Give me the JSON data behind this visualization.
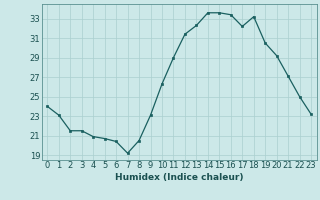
{
  "x": [
    0,
    1,
    2,
    3,
    4,
    5,
    6,
    7,
    8,
    9,
    10,
    11,
    12,
    13,
    14,
    15,
    16,
    17,
    18,
    19,
    20,
    21,
    22,
    23
  ],
  "y": [
    24.0,
    23.1,
    21.5,
    21.5,
    20.9,
    20.7,
    20.4,
    19.2,
    20.5,
    23.1,
    26.3,
    29.0,
    31.4,
    32.3,
    33.6,
    33.6,
    33.4,
    32.2,
    33.2,
    30.5,
    29.2,
    27.1,
    25.0,
    23.2
  ],
  "bg_color": "#cce8e8",
  "grid_color": "#aacfcf",
  "line_color": "#1a6060",
  "marker_color": "#1a6060",
  "xlabel": "Humidex (Indice chaleur)",
  "ylim": [
    18.5,
    34.5
  ],
  "xlim": [
    -0.5,
    23.5
  ],
  "yticks": [
    19,
    21,
    23,
    25,
    27,
    29,
    31,
    33
  ],
  "xticks": [
    0,
    1,
    2,
    3,
    4,
    5,
    6,
    7,
    8,
    9,
    10,
    11,
    12,
    13,
    14,
    15,
    16,
    17,
    18,
    19,
    20,
    21,
    22,
    23
  ],
  "tick_fontsize": 6.0,
  "xlabel_fontsize": 6.5,
  "marker_size": 2.0,
  "line_width": 0.9
}
